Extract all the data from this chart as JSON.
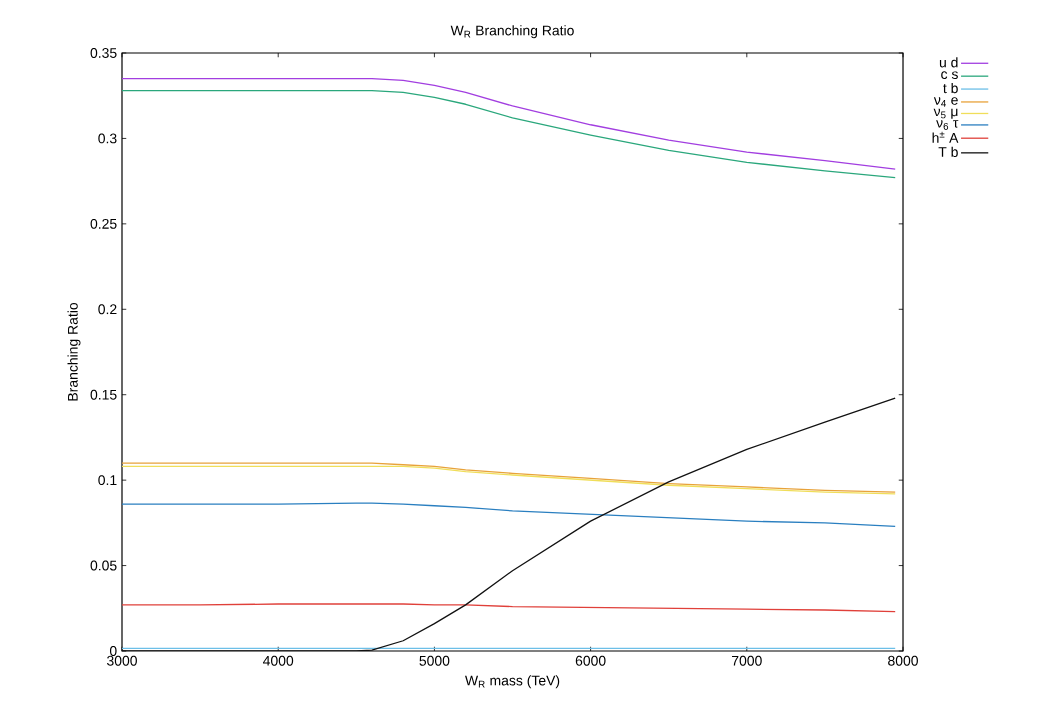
{
  "chart_data": {
    "type": "line",
    "title": "W$_{R}$ Branching Ratio",
    "xlabel": "W$_{R}$ mass (TeV)",
    "ylabel": "Branching Ratio",
    "x": [
      3000,
      3500,
      4000,
      4500,
      4600,
      4800,
      5000,
      5200,
      5500,
      6000,
      6500,
      7000,
      7500,
      7950
    ],
    "series": [
      {
        "name": "u d",
        "color": "#a23ee0",
        "values": [
          0.335,
          0.335,
          0.335,
          0.335,
          0.335,
          0.334,
          0.331,
          0.327,
          0.319,
          0.308,
          0.299,
          0.292,
          0.287,
          0.282
        ]
      },
      {
        "name": "c s",
        "color": "#2aa77c",
        "values": [
          0.328,
          0.328,
          0.328,
          0.328,
          0.328,
          0.327,
          0.324,
          0.32,
          0.312,
          0.302,
          0.293,
          0.286,
          0.281,
          0.277
        ]
      },
      {
        "name": "t b",
        "color": "#6cbfe8",
        "values": [
          0.0015,
          0.0015,
          0.0015,
          0.0015,
          0.0015,
          0.0015,
          0.0015,
          0.0015,
          0.0015,
          0.0015,
          0.0015,
          0.0015,
          0.0015,
          0.0015
        ]
      },
      {
        "name": "ν$_{4}$ e",
        "color": "#e8a23a",
        "values": [
          0.11,
          0.11,
          0.11,
          0.11,
          0.11,
          0.109,
          0.108,
          0.106,
          0.104,
          0.101,
          0.098,
          0.096,
          0.094,
          0.093
        ]
      },
      {
        "name": "ν$_{5}$ μ",
        "color": "#f0de5a",
        "values": [
          0.108,
          0.108,
          0.108,
          0.108,
          0.108,
          0.108,
          0.107,
          0.105,
          0.103,
          0.1,
          0.097,
          0.095,
          0.093,
          0.092
        ]
      },
      {
        "name": "ν$_{6}$ τ",
        "color": "#2a7fc0",
        "values": [
          0.086,
          0.086,
          0.086,
          0.0865,
          0.0865,
          0.086,
          0.085,
          0.084,
          0.082,
          0.08,
          0.078,
          0.076,
          0.075,
          0.073
        ]
      },
      {
        "name": "h$^{±}$ A",
        "color": "#e0403a",
        "values": [
          0.027,
          0.027,
          0.0275,
          0.0275,
          0.0275,
          0.0275,
          0.027,
          0.027,
          0.026,
          0.0255,
          0.025,
          0.0245,
          0.024,
          0.023
        ]
      },
      {
        "name": "T b",
        "color": "#111111",
        "values": [
          0,
          0,
          0,
          0,
          0.0005,
          0.006,
          0.016,
          0.027,
          0.047,
          0.076,
          0.099,
          0.118,
          0.134,
          0.148
        ]
      }
    ],
    "xlim": [
      3000,
      8000
    ],
    "xticks": [
      3000,
      4000,
      5000,
      6000,
      7000,
      8000
    ],
    "ylim": [
      0,
      0.35
    ],
    "yticks": [
      0,
      0.05,
      0.1,
      0.15,
      0.2,
      0.25,
      0.3,
      0.35
    ],
    "grid": false,
    "legend": "top right",
    "marker": "none",
    "line_style": "solid"
  }
}
